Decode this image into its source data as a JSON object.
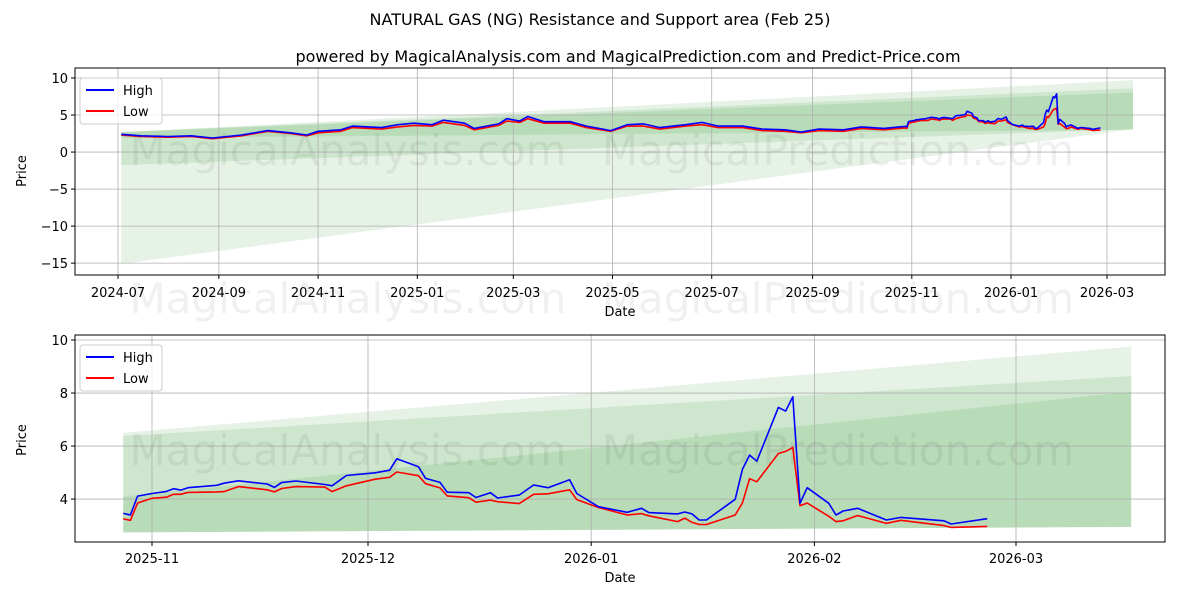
{
  "title": "NATURAL GAS (NG) Resistance and Support area (Feb 25)",
  "subtitle": "powered by MagicalAnalysis.com and MagicalPrediction.com and Predict-Price.com",
  "watermark": [
    "MagicalAnalysis.com",
    "MagicalPrediction.com"
  ],
  "colors": {
    "high": "#0000ff",
    "low": "#ff0000",
    "band": "#008000"
  },
  "chart_data": [
    {
      "type": "line",
      "name": "full-history",
      "xlabel": "Date",
      "ylabel": "Price",
      "ylim": [
        -16.6,
        11.35
      ],
      "yticks": [
        10,
        5,
        0,
        -5,
        -10,
        -15
      ],
      "ytick_labels": [
        "10",
        "5",
        "0",
        "−5",
        "−10",
        "−15"
      ],
      "xticks": [
        "2024-07-01",
        "2024-09-01",
        "2024-11-01",
        "2025-01-01",
        "2025-03-01",
        "2025-05-01",
        "2025-07-01",
        "2025-09-01",
        "2025-11-01",
        "2026-01-01",
        "2026-03-01"
      ],
      "xtick_labels": [
        "2024-07",
        "2024-09",
        "2024-11",
        "2025-01",
        "2025-03",
        "2025-05",
        "2025-07",
        "2025-09",
        "2025-11",
        "2026-01",
        "2026-03"
      ],
      "legend": {
        "placement": "top-left",
        "entries": [
          "High",
          "Low"
        ]
      },
      "grid": true,
      "includes_recent_series": true,
      "series": [
        [
          "2024-07-03",
          2.4,
          2.3
        ],
        [
          "2024-07-15",
          2.2,
          2.1
        ],
        [
          "2024-08-01",
          2.1,
          2.0
        ],
        [
          "2024-08-15",
          2.2,
          2.1
        ],
        [
          "2024-08-28",
          1.9,
          1.8
        ],
        [
          "2024-09-15",
          2.3,
          2.2
        ],
        [
          "2024-10-01",
          2.9,
          2.8
        ],
        [
          "2024-10-15",
          2.6,
          2.5
        ],
        [
          "2024-10-25",
          2.3,
          2.2
        ],
        [
          "2024-11-01",
          2.8,
          2.6
        ],
        [
          "2024-11-15",
          3.0,
          2.8
        ],
        [
          "2024-11-22",
          3.5,
          3.3
        ],
        [
          "2024-12-10",
          3.3,
          3.1
        ],
        [
          "2024-12-20",
          3.7,
          3.4
        ],
        [
          "2024-12-30",
          3.9,
          3.6
        ],
        [
          "2025-01-10",
          3.7,
          3.5
        ],
        [
          "2025-01-17",
          4.3,
          4.0
        ],
        [
          "2025-01-30",
          3.9,
          3.6
        ],
        [
          "2025-02-05",
          3.2,
          3.0
        ],
        [
          "2025-02-20",
          3.8,
          3.6
        ],
        [
          "2025-02-25",
          4.5,
          4.2
        ],
        [
          "2025-03-05",
          4.2,
          4.0
        ],
        [
          "2025-03-10",
          4.8,
          4.5
        ],
        [
          "2025-03-20",
          4.1,
          3.9
        ],
        [
          "2025-04-05",
          4.1,
          3.9
        ],
        [
          "2025-04-15",
          3.5,
          3.3
        ],
        [
          "2025-04-30",
          2.9,
          2.8
        ],
        [
          "2025-05-10",
          3.7,
          3.5
        ],
        [
          "2025-05-20",
          3.8,
          3.5
        ],
        [
          "2025-05-30",
          3.3,
          3.1
        ],
        [
          "2025-06-15",
          3.7,
          3.5
        ],
        [
          "2025-06-25",
          4.0,
          3.7
        ],
        [
          "2025-07-05",
          3.5,
          3.3
        ],
        [
          "2025-07-20",
          3.5,
          3.3
        ],
        [
          "2025-08-01",
          3.1,
          2.9
        ],
        [
          "2025-08-15",
          3.0,
          2.8
        ],
        [
          "2025-08-25",
          2.7,
          2.6
        ],
        [
          "2025-09-05",
          3.1,
          2.9
        ],
        [
          "2025-09-20",
          3.0,
          2.8
        ],
        [
          "2025-10-01",
          3.4,
          3.2
        ],
        [
          "2025-10-15",
          3.2,
          3.0
        ],
        [
          "2025-10-24",
          3.4,
          3.2
        ]
      ],
      "bands": [
        {
          "start": "2024-07-03",
          "end": "2026-03-17",
          "lower": [
            -15.1,
            3.1
          ],
          "upper": [
            2.7,
            9.7
          ]
        },
        {
          "start": "2024-07-03",
          "end": "2026-03-17",
          "lower": [
            -1.76,
            3.1
          ],
          "upper": [
            2.7,
            8.6
          ]
        },
        {
          "start": "2024-07-03",
          "end": "2026-03-17",
          "lower": [
            1.9,
            3.0
          ],
          "upper": [
            2.7,
            8.05
          ]
        }
      ]
    },
    {
      "type": "line",
      "name": "recent",
      "xlabel": "Date",
      "ylabel": "Price",
      "ylim": [
        2.38,
        10.19
      ],
      "yticks": [
        10,
        8,
        6,
        4
      ],
      "ytick_labels": [
        "10",
        "8",
        "6",
        "4"
      ],
      "xticks": [
        "2025-11-01",
        "2025-12-01",
        "2026-01-01",
        "2026-02-01",
        "2026-03-01"
      ],
      "xtick_labels": [
        "2025-11",
        "2025-12",
        "2026-01",
        "2026-02",
        "2026-03"
      ],
      "legend": {
        "placement": "top-left",
        "entries": [
          "High",
          "Low"
        ]
      },
      "grid": true,
      "series": [
        [
          "2025-10-28",
          3.46,
          3.25
        ],
        [
          "2025-10-29",
          3.4,
          3.2
        ],
        [
          "2025-10-30",
          4.11,
          3.85
        ],
        [
          "2025-11-01",
          4.21,
          4.03
        ],
        [
          "2025-11-03",
          4.29,
          4.07
        ],
        [
          "2025-11-04",
          4.39,
          4.18
        ],
        [
          "2025-11-05",
          4.34,
          4.18
        ],
        [
          "2025-11-06",
          4.43,
          4.25
        ],
        [
          "2025-11-10",
          4.52,
          4.27
        ],
        [
          "2025-11-11",
          4.6,
          4.28
        ],
        [
          "2025-11-13",
          4.69,
          4.47
        ],
        [
          "2025-11-17",
          4.57,
          4.35
        ],
        [
          "2025-11-18",
          4.44,
          4.27
        ],
        [
          "2025-11-19",
          4.62,
          4.4
        ],
        [
          "2025-11-21",
          4.68,
          4.47
        ],
        [
          "2025-11-25",
          4.55,
          4.45
        ],
        [
          "2025-11-26",
          4.5,
          4.28
        ],
        [
          "2025-11-28",
          4.89,
          4.5
        ],
        [
          "2025-12-02",
          4.99,
          4.75
        ],
        [
          "2025-12-04",
          5.09,
          4.82
        ],
        [
          "2025-12-05",
          5.52,
          5.02
        ],
        [
          "2025-12-08",
          5.22,
          4.88
        ],
        [
          "2025-12-09",
          4.78,
          4.58
        ],
        [
          "2025-12-11",
          4.63,
          4.42
        ],
        [
          "2025-12-12",
          4.26,
          4.12
        ],
        [
          "2025-12-15",
          4.24,
          4.05
        ],
        [
          "2025-12-16",
          4.06,
          3.88
        ],
        [
          "2025-12-18",
          4.24,
          3.96
        ],
        [
          "2025-12-19",
          4.04,
          3.9
        ],
        [
          "2025-12-22",
          4.15,
          3.83
        ],
        [
          "2025-12-24",
          4.53,
          4.18
        ],
        [
          "2025-12-26",
          4.43,
          4.2
        ],
        [
          "2025-12-29",
          4.73,
          4.35
        ],
        [
          "2025-12-30",
          4.21,
          3.98
        ],
        [
          "2026-01-02",
          3.71,
          3.68
        ],
        [
          "2026-01-06",
          3.5,
          3.4
        ],
        [
          "2026-01-08",
          3.65,
          3.45
        ],
        [
          "2026-01-09",
          3.49,
          3.37
        ],
        [
          "2026-01-13",
          3.44,
          3.15
        ],
        [
          "2026-01-14",
          3.51,
          3.28
        ],
        [
          "2026-01-15",
          3.44,
          3.12
        ],
        [
          "2026-01-16",
          3.21,
          3.04
        ],
        [
          "2026-01-17",
          3.21,
          3.04
        ],
        [
          "2026-01-21",
          3.99,
          3.4
        ],
        [
          "2026-01-22",
          5.12,
          3.85
        ],
        [
          "2026-01-23",
          5.66,
          4.77
        ],
        [
          "2026-01-24",
          5.43,
          4.65
        ],
        [
          "2026-01-27",
          7.46,
          5.72
        ],
        [
          "2026-01-28",
          7.32,
          5.8
        ],
        [
          "2026-01-29",
          7.86,
          5.95
        ],
        [
          "2026-01-30",
          3.84,
          3.75
        ],
        [
          "2026-01-31",
          4.43,
          3.85
        ],
        [
          "2026-02-03",
          3.84,
          3.35
        ],
        [
          "2026-02-04",
          3.4,
          3.15
        ],
        [
          "2026-02-05",
          3.55,
          3.18
        ],
        [
          "2026-02-07",
          3.65,
          3.38
        ],
        [
          "2026-02-11",
          3.21,
          3.08
        ],
        [
          "2026-02-13",
          3.31,
          3.2
        ],
        [
          "2026-02-19",
          3.18,
          3.0
        ],
        [
          "2026-02-20",
          3.06,
          2.93
        ],
        [
          "2026-02-25",
          3.26,
          2.97
        ]
      ],
      "bands": [
        {
          "start": "2025-10-28",
          "end": "2026-03-17",
          "lower": [
            2.74,
            2.95
          ],
          "upper": [
            6.5,
            9.75
          ]
        },
        {
          "start": "2025-10-28",
          "end": "2026-03-17",
          "lower": [
            2.74,
            2.95
          ],
          "upper": [
            6.38,
            8.64
          ]
        },
        {
          "start": "2025-10-28",
          "end": "2026-03-17",
          "lower": [
            2.74,
            2.95
          ],
          "upper": [
            4.09,
            8.05
          ]
        }
      ]
    }
  ]
}
